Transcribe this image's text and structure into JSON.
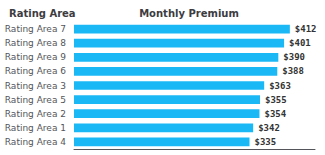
{
  "chart_data": {
    "type": "bar",
    "orientation": "horizontal",
    "ylabel": "Rating Area",
    "xlabel": "Monthly Premium",
    "categories": [
      "Rating Area 7",
      "Rating Area 8",
      "Rating Area 9",
      "Rating Area 6",
      "Rating Area 3",
      "Rating Area 5",
      "Rating Area 2",
      "Rating Area 1",
      "Rating Area 4"
    ],
    "values": [
      412,
      401,
      390,
      388,
      363,
      355,
      354,
      342,
      335
    ],
    "value_labels": [
      "$412",
      "$401",
      "$390",
      "$388",
      "$363",
      "$355",
      "$354",
      "$342",
      "$335"
    ],
    "data_labels": true,
    "color": "#1ab8f5",
    "xlim": [
      0,
      460
    ],
    "tick_labels": "y",
    "grid": false
  }
}
